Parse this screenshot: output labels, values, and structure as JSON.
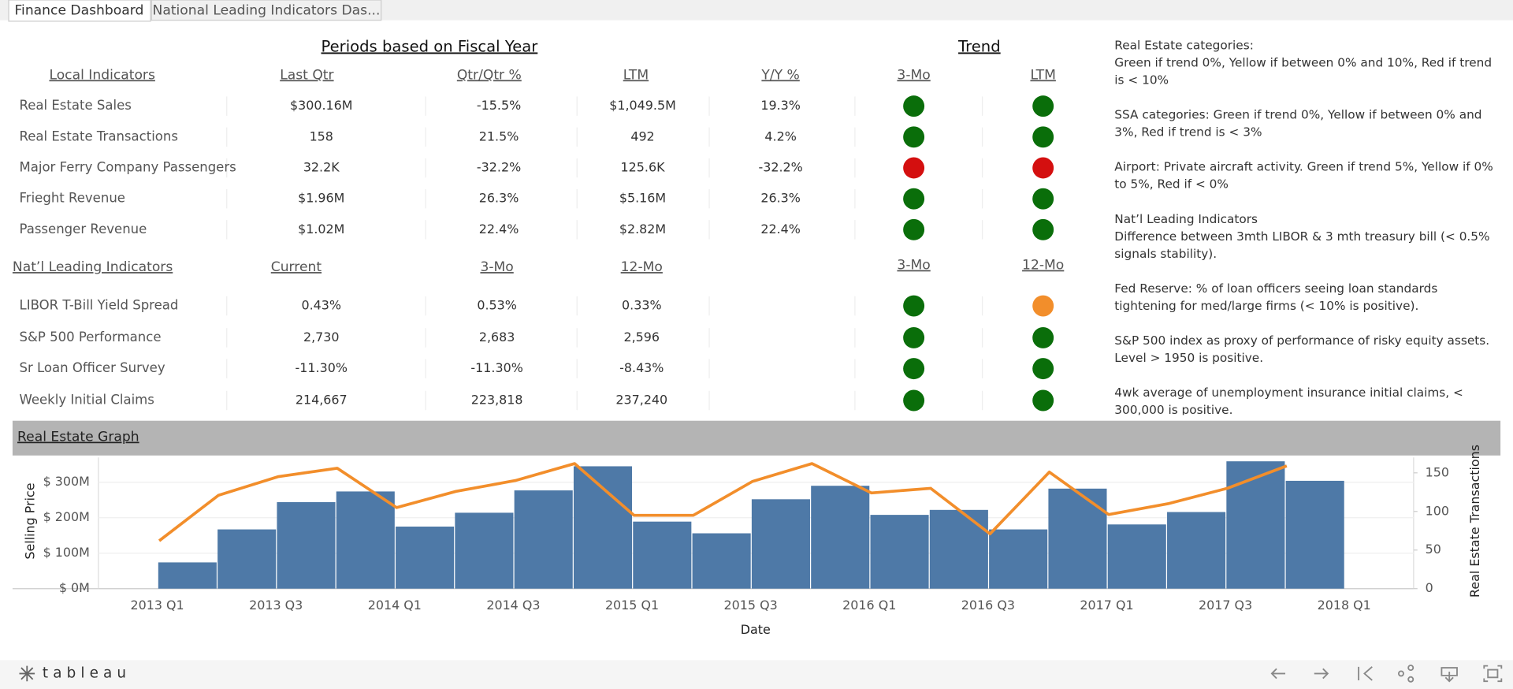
{
  "tabs": [
    "Finance Dashboard",
    "National Leading Indicators Das..."
  ],
  "footer": {
    "logo": "tableau"
  },
  "local": {
    "section_title": "Periods based on Fiscal Year",
    "trend_title": "Trend",
    "headers": [
      "Local Indicators",
      "Last Qtr",
      "Qtr/Qtr %",
      "LTM",
      "Y/Y %"
    ],
    "trend_headers": [
      "3-Mo",
      "LTM"
    ],
    "rows": [
      {
        "name": "Real Estate Sales",
        "values": [
          "$300.16M",
          "-15.5%",
          "$1,049.5M",
          "19.3%"
        ],
        "trend": [
          "#0a6e0a",
          "#0a6e0a"
        ]
      },
      {
        "name": "Real Estate Transactions",
        "values": [
          "158",
          "21.5%",
          "492",
          "4.2%"
        ],
        "trend": [
          "#0a6e0a",
          "#0a6e0a"
        ]
      },
      {
        "name": "Major Ferry Company Passengers",
        "values": [
          "32.2K",
          "-32.2%",
          "125.6K",
          "-32.2%"
        ],
        "trend": [
          "#d40f0f",
          "#d40f0f"
        ]
      },
      {
        "name": "Frieght Revenue",
        "values": [
          "$1.96M",
          "26.3%",
          "$5.16M",
          "26.3%"
        ],
        "trend": [
          "#0a6e0a",
          "#0a6e0a"
        ]
      },
      {
        "name": "Passenger Revenue",
        "values": [
          "$1.02M",
          "22.4%",
          "$2.82M",
          "22.4%"
        ],
        "trend": [
          "#0a6e0a",
          "#0a6e0a"
        ]
      }
    ]
  },
  "national": {
    "headers": [
      "Nat’l Leading Indicators",
      "Current",
      "3-Mo",
      "12-Mo"
    ],
    "trend_headers": [
      "3-Mo",
      "12-Mo"
    ],
    "rows": [
      {
        "name": "LIBOR T-Bill Yield Spread",
        "values": [
          "0.43%",
          "0.53%",
          "0.33%"
        ],
        "trend": [
          "#0a6e0a",
          "#f28e2b"
        ]
      },
      {
        "name": "S&P 500 Performance",
        "values": [
          "2,730",
          "2,683",
          "2,596"
        ],
        "trend": [
          "#0a6e0a",
          "#0a6e0a"
        ]
      },
      {
        "name": "Sr Loan Officer Survey",
        "values": [
          "-11.30%",
          "-11.30%",
          "-8.43%"
        ],
        "trend": [
          "#0a6e0a",
          "#0a6e0a"
        ]
      },
      {
        "name": "Weekly Initial Claims",
        "values": [
          "214,667",
          "223,818",
          "237,240"
        ],
        "trend": [
          "#0a6e0a",
          "#0a6e0a"
        ]
      }
    ]
  },
  "notes": [
    "Real Estate categories:\nGreen if trend 0%, Yellow if between 0% and 10%, Red if trend is < 10%",
    "SSA categories: Green if trend 0%, Yellow if between 0% and 3%, Red if trend is < 3%",
    "Airport: Private aircraft activity. Green if trend 5%, Yellow if 0% to 5%, Red if < 0%",
    "Nat’l  Leading Indicators\nDifference between 3mth LIBOR & 3 mth treasury bill (< 0.5% signals stability).",
    "Fed Reserve: % of loan officers seeing loan standards tightening for med/large firms (< 10% is positive).",
    "S&P 500 index as proxy of performance of risky equity assets. Level > 1950 is positive.",
    "4wk average of unemployment insurance initial claims, < 300,000 is positive."
  ],
  "chart_data": {
    "type": "combo",
    "title": "Real Estate Graph",
    "xlabel": "Date",
    "ylabel": "Selling Price",
    "y2label": "Real Estate Transactions",
    "xticks": [
      "2013 Q1",
      "2013 Q3",
      "2014 Q1",
      "2014 Q3",
      "2015 Q1",
      "2015 Q3",
      "2016 Q1",
      "2016 Q3",
      "2017 Q1",
      "2017 Q3",
      "2018 Q1"
    ],
    "ylim": [
      0,
      370000000
    ],
    "yticks": [
      {
        "value": 0,
        "label": "$ 0M"
      },
      {
        "value": 100000000,
        "label": "$ 100M"
      },
      {
        "value": 200000000,
        "label": "$ 200M"
      },
      {
        "value": 300000000,
        "label": "$ 300M"
      }
    ],
    "y2lim": [
      0,
      170
    ],
    "y2ticks": [
      0,
      50,
      100,
      150
    ],
    "grid": true,
    "series": [
      {
        "type": "bar",
        "color": "#4e79a7",
        "values": [
          74000000,
          167000000,
          244000000,
          274000000,
          175000000,
          214000000,
          277000000,
          345000000,
          189000000,
          156000000,
          252000000,
          290000000,
          208000000,
          222000000,
          167000000,
          282000000,
          181000000,
          216000000,
          359000000,
          304000000
        ]
      },
      {
        "type": "line",
        "color": "#f28e2b",
        "axis": "y2",
        "values": [
          62,
          121,
          145,
          156,
          105,
          126,
          140,
          162,
          95,
          95,
          139,
          162,
          124,
          130,
          71,
          151,
          96,
          110,
          130,
          159
        ]
      }
    ]
  }
}
